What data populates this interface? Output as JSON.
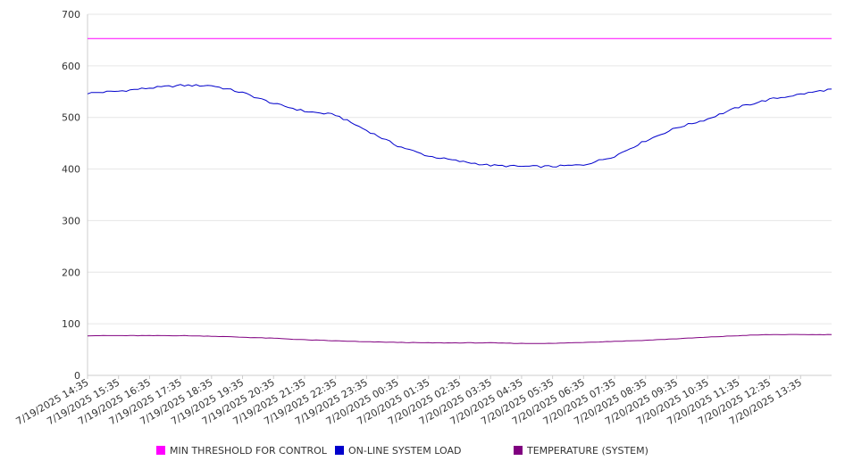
{
  "chart_data": {
    "type": "line",
    "title": "",
    "xlabel": "",
    "ylabel": "",
    "ylim": [
      0,
      700
    ],
    "y_ticks": [
      0,
      100,
      200,
      300,
      400,
      500,
      600,
      700
    ],
    "grid": "horizontal",
    "legend_position": "bottom",
    "x_tick_labels": [
      "7/19/2025 14:35",
      "7/19/2025 15:35",
      "7/19/2025 16:35",
      "7/19/2025 17:35",
      "7/19/2025 18:35",
      "7/19/2025 19:35",
      "7/19/2025 20:35",
      "7/19/2025 21:35",
      "7/19/2025 22:35",
      "7/19/2025 23:35",
      "7/20/2025 00:35",
      "7/20/2025 01:35",
      "7/20/2025 02:35",
      "7/20/2025 03:35",
      "7/20/2025 04:35",
      "7/20/2025 05:35",
      "7/20/2025 06:35",
      "7/20/2025 07:35",
      "7/20/2025 08:35",
      "7/20/2025 09:35",
      "7/20/2025 10:35",
      "7/20/2025 11:35",
      "7/20/2025 12:35",
      "7/20/2025 13:35"
    ],
    "x_hours": [
      0,
      1,
      2,
      3,
      4,
      5,
      6,
      7,
      8,
      9,
      10,
      11,
      12,
      13,
      14,
      15,
      16,
      17,
      18,
      19,
      20,
      21,
      22,
      23,
      24
    ],
    "series": [
      {
        "name": "MIN THRESHOLD FOR CONTROL",
        "color": "#ff00ff",
        "values": [
          653,
          653,
          653,
          653,
          653,
          653,
          653,
          653,
          653,
          653,
          653,
          653,
          653,
          653,
          653,
          653,
          653,
          653,
          653,
          653,
          653,
          653,
          653,
          653,
          653
        ]
      },
      {
        "name": "ON-LINE SYSTEM LOAD",
        "color": "#0000cc",
        "values": [
          547,
          551,
          557,
          562,
          562,
          548,
          527,
          512,
          505,
          475,
          445,
          425,
          415,
          407,
          405,
          405,
          408,
          425,
          455,
          480,
          497,
          520,
          535,
          545,
          555
        ]
      },
      {
        "name": "TEMPERATURE (SYSTEM)",
        "color": "#800080",
        "values": [
          77,
          77,
          77,
          77,
          76,
          74,
          72,
          69,
          67,
          65,
          64,
          63,
          63,
          63,
          62,
          62,
          64,
          66,
          68,
          71,
          74,
          77,
          79,
          79,
          79
        ]
      }
    ]
  }
}
